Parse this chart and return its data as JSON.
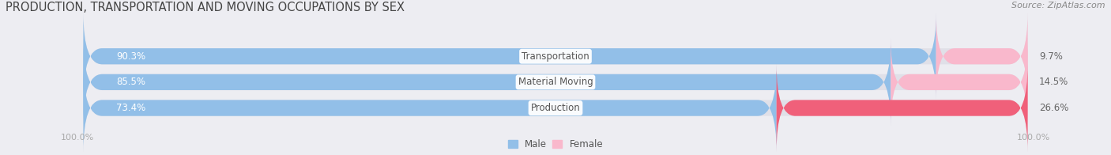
{
  "title": "PRODUCTION, TRANSPORTATION AND MOVING OCCUPATIONS BY SEX",
  "source": "Source: ZipAtlas.com",
  "categories": [
    "Transportation",
    "Material Moving",
    "Production"
  ],
  "male_values": [
    90.3,
    85.5,
    73.4
  ],
  "female_values": [
    9.7,
    14.5,
    26.6
  ],
  "male_color": "#92bfe8",
  "female_colors": [
    "#f9b8cc",
    "#f9b8cc",
    "#f0607a"
  ],
  "label_color_male": "#ffffff",
  "label_color_female": "#666666",
  "cat_label_color": "#555555",
  "axis_label_color": "#aaaaaa",
  "background_color": "#ededf2",
  "bar_background": "#e0e0e8",
  "title_fontsize": 10.5,
  "source_fontsize": 8,
  "bar_label_fontsize": 8.5,
  "cat_label_fontsize": 8.5,
  "axis_tick_fontsize": 8,
  "figsize": [
    14.06,
    1.96
  ],
  "dpi": 100
}
